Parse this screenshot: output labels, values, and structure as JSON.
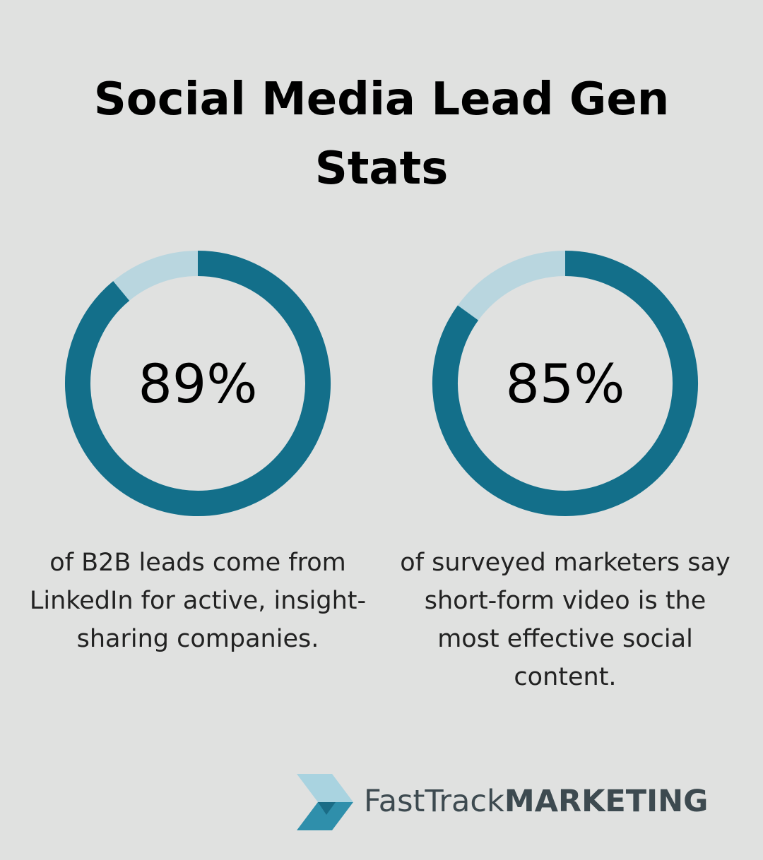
{
  "title": "Social Media Lead Gen Stats",
  "chart_data": [
    {
      "type": "donut",
      "values": [
        89
      ],
      "value_labels": [
        "89%"
      ],
      "color": "#136f8a",
      "track_color": "#b9d6df",
      "caption": "of B2B leads come from LinkedIn for active, insight-sharing companies."
    },
    {
      "type": "donut",
      "values": [
        85
      ],
      "value_labels": [
        "85%"
      ],
      "color": "#136f8a",
      "track_color": "#b9d6df",
      "caption": "of surveyed marketers say short-form video is the most effective social content."
    }
  ],
  "logo": {
    "light": "FastTrack",
    "bold": "MARKETING"
  }
}
